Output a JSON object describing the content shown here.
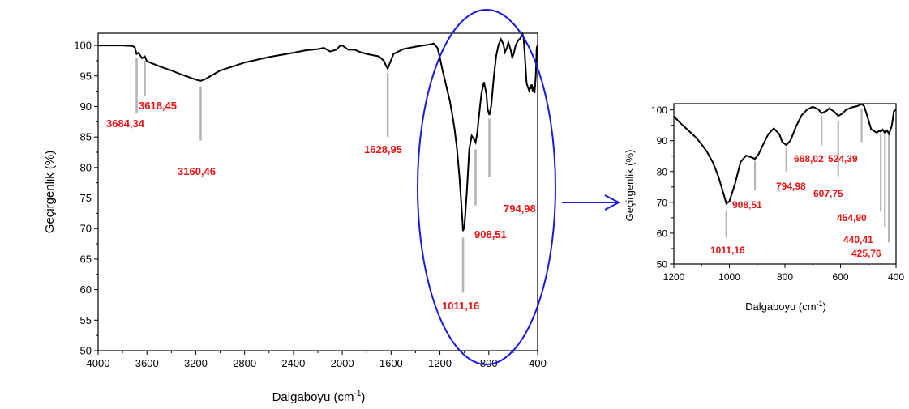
{
  "colors": {
    "spectrum": "#000000",
    "peak_label": "#ee1111",
    "marker": "#b5b5b5",
    "highlight": "#1a1adc"
  },
  "chart_data": [
    {
      "type": "line",
      "xlabel_main": "Dalgaboyu (cm",
      "xlabel_sup": "-1",
      "xlabel_end": ")",
      "ylabel": "Geçirgenlik (%)",
      "xlim": [
        4000,
        400
      ],
      "ylim": [
        50,
        102
      ],
      "xticks": [
        4000,
        3600,
        3200,
        2800,
        2400,
        2000,
        1600,
        1200,
        800,
        400
      ],
      "yticks": [
        50,
        55,
        60,
        65,
        70,
        75,
        80,
        85,
        90,
        95,
        100
      ],
      "series": [
        {
          "x": [
            4000,
            3800,
            3720,
            3700,
            3685,
            3670,
            3640,
            3618,
            3600,
            3500,
            3400,
            3300,
            3200,
            3160,
            3120,
            3000,
            2800,
            2600,
            2400,
            2300,
            2200,
            2150,
            2100,
            2050,
            2020,
            2000,
            1950,
            1900,
            1850,
            1800,
            1700,
            1660,
            1640,
            1628,
            1610,
            1580,
            1500,
            1400,
            1300,
            1250,
            1220,
            1200,
            1180,
            1150,
            1120,
            1100,
            1080,
            1060,
            1040,
            1020,
            1011,
            1000,
            980,
            960,
            940,
            920,
            908,
            895,
            880,
            860,
            840,
            820,
            810,
            795,
            780,
            760,
            740,
            720,
            700,
            680,
            668,
            650,
            640,
            620,
            608,
            595,
            580,
            560,
            540,
            530,
            524,
            515,
            505,
            490,
            470,
            460,
            455,
            448,
            440,
            432,
            425,
            415,
            408,
            400
          ],
          "y": [
            100,
            100,
            99.9,
            99.7,
            98.6,
            98.8,
            97.9,
            98.2,
            97.4,
            96.6,
            95.9,
            95.1,
            94.4,
            94.2,
            94.5,
            95.9,
            97.2,
            98.1,
            98.8,
            99.2,
            99.4,
            99.6,
            99.0,
            99.3,
            99.9,
            100,
            99.3,
            99.3,
            98.9,
            98.6,
            98.2,
            97.5,
            96.6,
            96.2,
            97.1,
            98.6,
            99.4,
            99.8,
            100.1,
            100.3,
            99.6,
            97.9,
            96.0,
            93.5,
            91.0,
            88.8,
            86.3,
            83.0,
            78.5,
            72.5,
            69.6,
            70.3,
            76.0,
            83.0,
            85.2,
            84.6,
            84.1,
            85.6,
            88.5,
            92.1,
            94.0,
            92.1,
            89.6,
            88.6,
            90.1,
            94.6,
            98.2,
            100.1,
            101.0,
            100.2,
            98.9,
            99.7,
            100.5,
            99.2,
            98.0,
            98.7,
            100.0,
            100.8,
            101.2,
            101.6,
            101.9,
            101.2,
            98.4,
            93.8,
            92.6,
            93.2,
            92.9,
            93.6,
            92.5,
            93.3,
            92.2,
            95.0,
            99.5,
            100.1
          ]
        }
      ],
      "annotations": [
        "3684,34",
        "3618,45",
        "3160,46",
        "1628,95",
        "1011,16",
        "908,51",
        "794,98"
      ]
    },
    {
      "type": "line",
      "xlabel_main": "Dalgaboyu (cm",
      "xlabel_sup": "-1",
      "xlabel_end": ")",
      "ylabel": "Geçirgenlik (%)",
      "xlim": [
        1200,
        400
      ],
      "ylim": [
        50,
        102
      ],
      "xticks": [
        1200,
        1000,
        800,
        600,
        400
      ],
      "yticks": [
        50,
        60,
        70,
        80,
        90,
        100
      ],
      "annotations": [
        "1011,16",
        "908,51",
        "794,98",
        "668,02",
        "607,75",
        "524,39",
        "454,90",
        "440,41",
        "425,76"
      ]
    }
  ]
}
